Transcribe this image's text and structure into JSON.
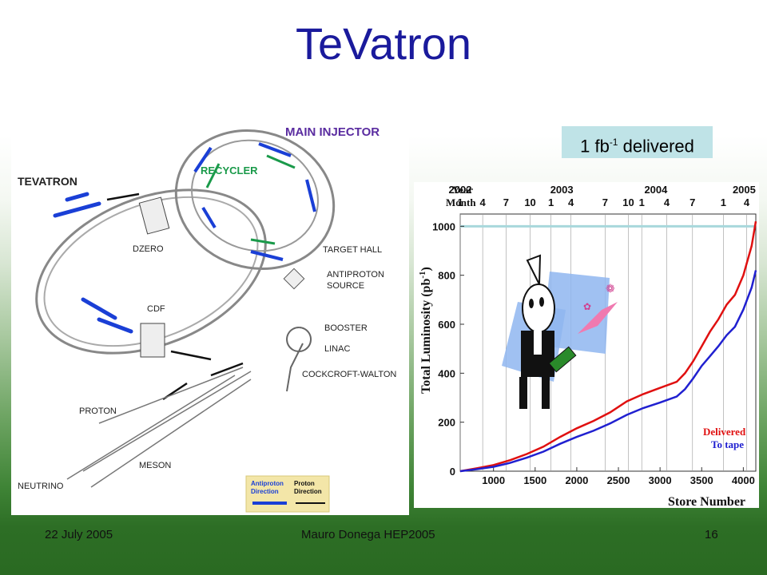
{
  "slide": {
    "title": "TeVatron",
    "badge": {
      "prefix": "1 fb",
      "superscript": "-1",
      "suffix": " delivered"
    },
    "footer": {
      "date": "22 July 2005",
      "author": "Mauro Donega HEP2005",
      "page": "16"
    }
  },
  "diagram": {
    "labels": {
      "main_injector": "MAIN INJECTOR",
      "recycler": "RECYCLER",
      "tevatron": "TEVATRON",
      "dzero": "DZERO",
      "cdf": "CDF",
      "target_hall": "TARGET HALL",
      "antiproton_source_1": "ANTIPROTON",
      "antiproton_source_2": "SOURCE",
      "booster": "BOOSTER",
      "linac": "LINAC",
      "cockcroft_walton": "COCKCROFT-WALTON",
      "proton": "PROTON",
      "neutrino": "NEUTRINO",
      "meson": "MESON"
    },
    "legend": {
      "antiproton_1": "Antiproton",
      "antiproton_2": "Direction",
      "proton_1": "Proton",
      "proton_2": "Direction"
    },
    "colors": {
      "antiproton": "#1a3fd6",
      "proton": "#111111",
      "recycler_arrows": "#1a9a4a"
    }
  },
  "chart_data": {
    "type": "line",
    "xlabel": "Store Number",
    "ylabel": "Total Luminosity (pb",
    "ylabel_superscript": "-1",
    "ylabel_close": ")",
    "x_ticks": [
      1000,
      1500,
      2000,
      2500,
      3000,
      3500,
      4000
    ],
    "y_ticks": [
      0,
      200,
      400,
      600,
      800,
      1000
    ],
    "xlim": [
      600,
      4150
    ],
    "ylim": [
      0,
      1050
    ],
    "reference_line": 1000,
    "year_row_label": "Year",
    "month_row_label": "Month",
    "years": [
      {
        "label": "2002",
        "x": 600
      },
      {
        "label": "2003",
        "x": 1820
      },
      {
        "label": "2004",
        "x": 2950
      },
      {
        "label": "2005",
        "x": 4010
      }
    ],
    "months": [
      {
        "label": "1",
        "x": 600
      },
      {
        "label": "4",
        "x": 870
      },
      {
        "label": "7",
        "x": 1150
      },
      {
        "label": "10",
        "x": 1440
      },
      {
        "label": "1",
        "x": 1690
      },
      {
        "label": "4",
        "x": 1930
      },
      {
        "label": "7",
        "x": 2340
      },
      {
        "label": "10",
        "x": 2620
      },
      {
        "label": "1",
        "x": 2780
      },
      {
        "label": "4",
        "x": 3080
      },
      {
        "label": "7",
        "x": 3390
      },
      {
        "label": "1",
        "x": 3760
      },
      {
        "label": "4",
        "x": 4040
      }
    ],
    "series": [
      {
        "name": "Delivered",
        "color": "#e01010",
        "x": [
          600,
          800,
          1000,
          1200,
          1400,
          1600,
          1800,
          2000,
          2200,
          2400,
          2600,
          2800,
          3000,
          3200,
          3300,
          3400,
          3500,
          3600,
          3700,
          3800,
          3900,
          4000,
          4100,
          4150
        ],
        "y": [
          0,
          12,
          25,
          45,
          70,
          100,
          140,
          175,
          205,
          240,
          285,
          315,
          340,
          365,
          400,
          450,
          510,
          570,
          620,
          680,
          720,
          800,
          920,
          1020
        ]
      },
      {
        "name": "To tape",
        "color": "#2020d0",
        "x": [
          600,
          800,
          1000,
          1200,
          1400,
          1600,
          1800,
          2000,
          2200,
          2400,
          2600,
          2800,
          3000,
          3200,
          3300,
          3400,
          3500,
          3600,
          3700,
          3800,
          3900,
          4000,
          4100,
          4150
        ],
        "y": [
          0,
          8,
          18,
          34,
          55,
          80,
          112,
          140,
          165,
          195,
          230,
          258,
          280,
          305,
          335,
          380,
          430,
          470,
          510,
          555,
          590,
          660,
          750,
          820
        ]
      }
    ]
  }
}
